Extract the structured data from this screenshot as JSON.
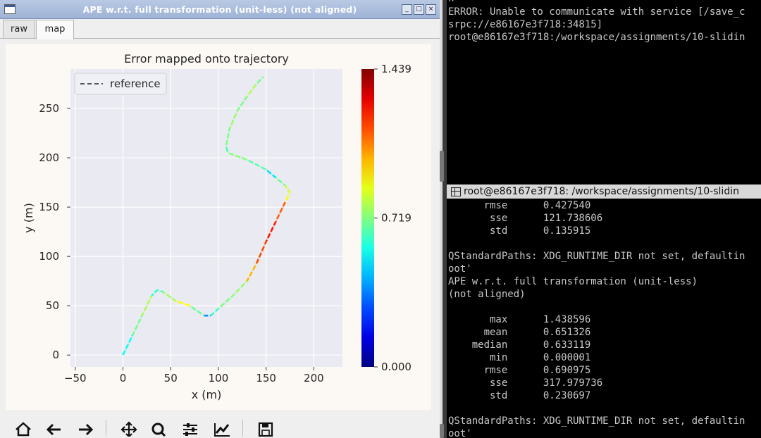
{
  "window": {
    "title": "APE w.r.t. full transformation (unit-less) (not aligned)",
    "tabs": [
      {
        "label": "raw"
      },
      {
        "label": "map"
      }
    ],
    "active_tab": "map"
  },
  "plot": {
    "colormap": "jet",
    "path_style": "dashed",
    "colors": {
      "axes_bg": "#eaeaf2",
      "figure_bg": "#fcf8f3",
      "grid": "#ffffff",
      "reference": "#555555"
    },
    "chart_data": {
      "type": "line",
      "title": "Error mapped onto trajectory",
      "xlabel": "x (m)",
      "ylabel": "y (m)",
      "xlim": [
        -55,
        230
      ],
      "ylim": [
        -12,
        290
      ],
      "xticks": [
        -50,
        0,
        50,
        100,
        150,
        200
      ],
      "yticks": [
        0,
        50,
        100,
        150,
        200,
        250
      ],
      "grid": true,
      "legend": {
        "position": "top-left",
        "entries": [
          "reference"
        ]
      },
      "colorbar": {
        "min": 0.0,
        "max": 1.439,
        "ticks": [
          1.439,
          0.719,
          0.0
        ],
        "tick_labels": [
          "1.439",
          "0.719",
          "0.000"
        ]
      },
      "series": [
        {
          "name": "reference",
          "x": [
            0,
            10,
            20,
            30,
            36,
            42,
            55,
            70,
            85,
            92,
            100,
            115,
            130,
            140,
            150,
            160,
            170,
            175,
            170,
            160,
            150,
            130,
            110,
            108,
            112,
            120,
            130,
            140,
            147
          ],
          "y": [
            0,
            20,
            40,
            60,
            66,
            64,
            55,
            50,
            40,
            40,
            47,
            60,
            75,
            93,
            115,
            135,
            155,
            165,
            172,
            180,
            188,
            198,
            205,
            212,
            230,
            248,
            262,
            275,
            282
          ],
          "error": [
            0.65,
            0.45,
            0.95,
            0.62,
            0.58,
            0.68,
            0.85,
            0.95,
            0.42,
            0.35,
            0.88,
            0.55,
            0.95,
            1.05,
            1.25,
            1.2,
            1.05,
            0.72,
            0.95,
            0.45,
            0.55,
            0.78,
            0.68,
            0.62,
            0.8,
            0.7,
            0.72,
            0.85,
            0.55
          ]
        }
      ]
    }
  },
  "toolbar": {
    "buttons": [
      {
        "name": "home-button",
        "icon": "home-icon"
      },
      {
        "name": "back-button",
        "icon": "arrow-left-icon"
      },
      {
        "name": "forward-button",
        "icon": "arrow-right-icon"
      },
      {
        "name": "pan-button",
        "icon": "move-icon"
      },
      {
        "name": "zoom-button",
        "icon": "magnifier-icon"
      },
      {
        "name": "subplots-button",
        "icon": "sliders-icon"
      },
      {
        "name": "edit-axes-button",
        "icon": "chart-line-icon"
      },
      {
        "name": "save-button",
        "icon": "floppy-disk-icon"
      }
    ]
  },
  "terminal_top": {
    "lines": [
      "n",
      "ERROR: Unable to communicate with service [/save_c",
      "srpc://e86167e3f718:34815]",
      "root@e86167e3f718:/workspace/assignments/10-slidin"
    ]
  },
  "terminal_bottom": {
    "title": "root@e86167e3f718: /workspace/assignments/10-slidin",
    "lines": [
      "      rmse      0.427540",
      "       sse      121.738606",
      "       std      0.135915",
      "",
      "QStandardPaths: XDG_RUNTIME_DIR not set, defaultin",
      "oot'",
      "APE w.r.t. full transformation (unit-less)",
      "(not aligned)",
      "",
      "       max      1.438596",
      "      mean      0.651326",
      "    median      0.633119",
      "       min      0.000001",
      "      rmse      0.690975",
      "       sse      317.979736",
      "       std      0.230697",
      "",
      "QStandardPaths: XDG_RUNTIME_DIR not set, defaultin",
      "oot'"
    ]
  }
}
